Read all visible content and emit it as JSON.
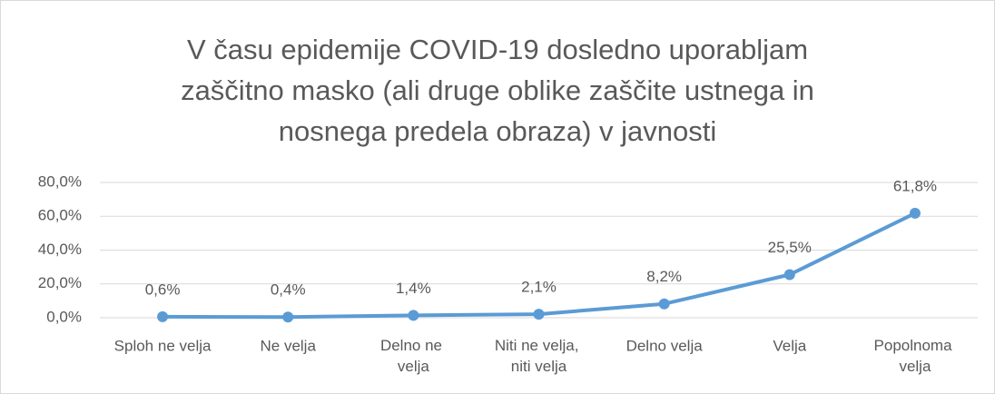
{
  "chart_data": {
    "type": "line",
    "title": [
      "V času epidemije COVID-19 dosledno uporabljam",
      "zaščitno masko (ali druge oblike zaščite ustnega in",
      "nosnega predela obraza) v javnosti"
    ],
    "categories": [
      "Sploh ne velja",
      "Ne velja",
      "Delno ne\nvelja",
      "Niti ne velja,\nniti velja",
      "Delno velja",
      "Velja",
      "Popolnoma\nvelja"
    ],
    "values": [
      0.6,
      0.4,
      1.4,
      2.1,
      8.2,
      25.5,
      61.8
    ],
    "value_labels": [
      "0,6%",
      "0,4%",
      "1,4%",
      "2,1%",
      "8,2%",
      "25,5%",
      "61,8%"
    ],
    "color": "#5b9bd5",
    "ylim": [
      0,
      80
    ],
    "yticks": [
      {
        "value": 0,
        "label": "0,0%"
      },
      {
        "value": 20,
        "label": "20,0%"
      },
      {
        "value": 40,
        "label": "40,0%"
      },
      {
        "value": 60,
        "label": "60,0%"
      },
      {
        "value": 80,
        "label": "80,0%"
      }
    ],
    "grid": true
  }
}
